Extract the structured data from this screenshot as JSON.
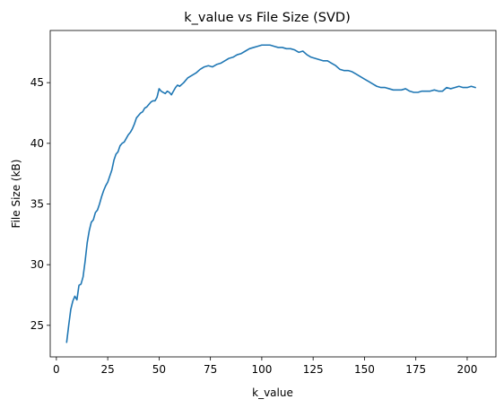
{
  "chart_data": {
    "type": "line",
    "title": "k_value vs File Size (SVD)",
    "xlabel": "k_value",
    "ylabel": "File Size (kB)",
    "xlim": [
      -3,
      214
    ],
    "ylim": [
      22.4,
      49.3
    ],
    "xticks": [
      0,
      25,
      50,
      75,
      100,
      125,
      150,
      175,
      200
    ],
    "yticks": [
      25,
      30,
      35,
      40,
      45
    ],
    "grid": false,
    "series_color": "#1f77b4",
    "series": [
      {
        "x": [
          5,
          6,
          7,
          8,
          9,
          10,
          11,
          12,
          13,
          14,
          15,
          16,
          17,
          18,
          19,
          20,
          21,
          22,
          23,
          24,
          25,
          26,
          27,
          28,
          29,
          30,
          31,
          32,
          33,
          34,
          35,
          36,
          37,
          38,
          39,
          40,
          41,
          42,
          43,
          44,
          45,
          46,
          47,
          48,
          49,
          50,
          51,
          52,
          53,
          54,
          55,
          56,
          57,
          58,
          59,
          60,
          62,
          64,
          66,
          68,
          70,
          72,
          74,
          76,
          78,
          80,
          82,
          84,
          86,
          88,
          90,
          92,
          94,
          96,
          98,
          100,
          102,
          104,
          106,
          108,
          110,
          112,
          114,
          116,
          118,
          120,
          122,
          124,
          126,
          128,
          130,
          132,
          134,
          136,
          138,
          140,
          142,
          144,
          146,
          148,
          150,
          152,
          154,
          156,
          158,
          160,
          162,
          164,
          166,
          168,
          170,
          172,
          174,
          176,
          178,
          180,
          182,
          184,
          186,
          188,
          190,
          192,
          194,
          196,
          198,
          200,
          202,
          204
        ],
        "y": [
          23.6,
          25.0,
          26.3,
          27.0,
          27.4,
          27.1,
          28.3,
          28.4,
          29.0,
          30.3,
          31.8,
          32.8,
          33.5,
          33.7,
          34.3,
          34.5,
          35.0,
          35.6,
          36.1,
          36.5,
          36.8,
          37.3,
          37.8,
          38.6,
          39.1,
          39.3,
          39.8,
          40.0,
          40.1,
          40.4,
          40.7,
          40.9,
          41.2,
          41.6,
          42.1,
          42.3,
          42.5,
          42.6,
          42.9,
          43.0,
          43.2,
          43.4,
          43.5,
          43.5,
          43.8,
          44.5,
          44.3,
          44.2,
          44.1,
          44.3,
          44.2,
          44.0,
          44.3,
          44.6,
          44.8,
          44.7,
          45.0,
          45.4,
          45.6,
          45.8,
          46.1,
          46.3,
          46.4,
          46.3,
          46.5,
          46.6,
          46.8,
          47.0,
          47.1,
          47.3,
          47.4,
          47.6,
          47.8,
          47.9,
          48.0,
          48.1,
          48.1,
          48.1,
          48.0,
          47.9,
          47.9,
          47.8,
          47.8,
          47.7,
          47.5,
          47.6,
          47.3,
          47.1,
          47.0,
          46.9,
          46.8,
          46.8,
          46.6,
          46.4,
          46.1,
          46.0,
          46.0,
          45.9,
          45.7,
          45.5,
          45.3,
          45.1,
          44.9,
          44.7,
          44.6,
          44.6,
          44.5,
          44.4,
          44.4,
          44.4,
          44.5,
          44.3,
          44.2,
          44.2,
          44.3,
          44.3,
          44.3,
          44.4,
          44.3,
          44.3,
          44.6,
          44.5,
          44.6,
          44.7,
          44.6,
          44.6,
          44.7,
          44.6
        ]
      }
    ]
  }
}
